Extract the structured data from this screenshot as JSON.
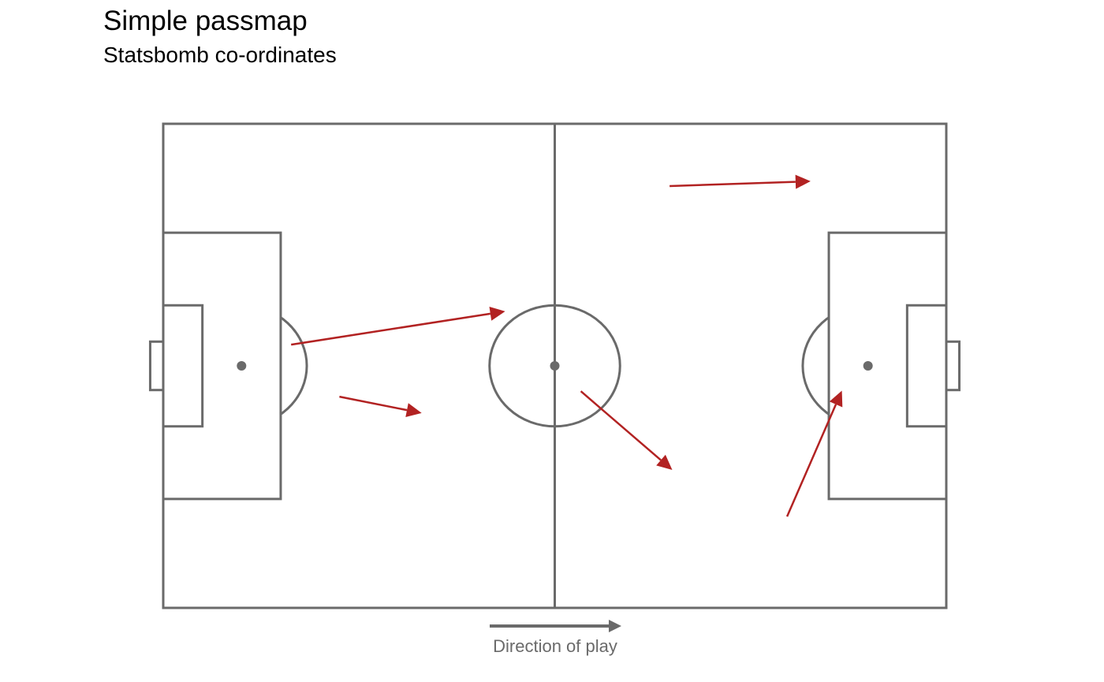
{
  "title": "Simple passmap",
  "subtitle": "Statsbomb co-ordinates",
  "colors": {
    "pass": "#b22222",
    "pitch": "#6a6a6a"
  },
  "chart_data": {
    "type": "scatter",
    "title": "Simple passmap",
    "subtitle": "Statsbomb co-ordinates",
    "xlim": [
      0,
      120
    ],
    "ylim": [
      0,
      80
    ],
    "direction_label": "Direction of play",
    "passes": [
      {
        "x": 19.6,
        "y": 36.5,
        "end_x": 52.4,
        "end_y": 31.0
      },
      {
        "x": 27.0,
        "y": 45.1,
        "end_x": 39.6,
        "end_y": 47.8
      },
      {
        "x": 64.0,
        "y": 44.2,
        "end_x": 78.0,
        "end_y": 57.2
      },
      {
        "x": 77.6,
        "y": 10.3,
        "end_x": 99.2,
        "end_y": 9.5
      },
      {
        "x": 95.6,
        "y": 64.9,
        "end_x": 104.0,
        "end_y": 44.1
      }
    ]
  }
}
